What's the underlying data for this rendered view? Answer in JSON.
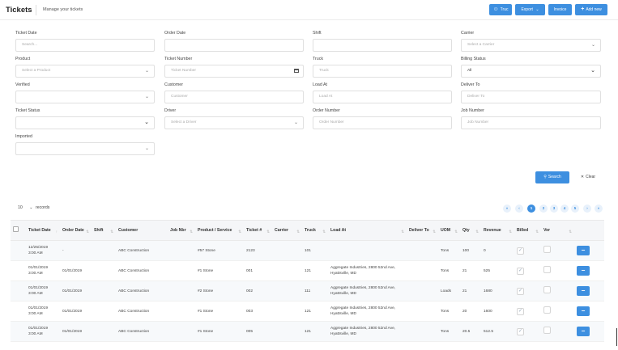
{
  "header": {
    "title": "Tickets",
    "subtitle": "Manage your tickets",
    "buttons": {
      "truc": "Truc",
      "export": "Export",
      "invoice": "Invoice",
      "add_new": "Add new"
    }
  },
  "filters": {
    "ticket_date": {
      "label": "Ticket Date",
      "placeholder": "Search..."
    },
    "order_date": {
      "label": "Order Date",
      "value": ""
    },
    "shift": {
      "label": "Shift",
      "value": ""
    },
    "carrier": {
      "label": "Carrier",
      "placeholder": "Select a Carrier"
    },
    "product": {
      "label": "Product",
      "placeholder": "Select a Product"
    },
    "ticket_number": {
      "label": "Ticket Number",
      "placeholder": "Ticket Number"
    },
    "truck": {
      "label": "Truck",
      "placeholder": "Truck"
    },
    "billing_status": {
      "label": "Billing Status",
      "value": "All"
    },
    "verified": {
      "label": "Verified",
      "value": ""
    },
    "customer": {
      "label": "Customer",
      "placeholder": "Customer"
    },
    "load_at": {
      "label": "Load At",
      "placeholder": "Load At"
    },
    "deliver_to": {
      "label": "Deliver To",
      "placeholder": "Deliver To"
    },
    "ticket_status": {
      "label": "Ticket Status",
      "value": ""
    },
    "driver": {
      "label": "Driver",
      "placeholder": "Select a Driver"
    },
    "order_number": {
      "label": "Order Number",
      "placeholder": "Order Number"
    },
    "job_number": {
      "label": "Job Number",
      "placeholder": "Job Number"
    },
    "imported": {
      "label": "Imported",
      "value": ""
    },
    "search_label": "Search",
    "clear_label": "Clear"
  },
  "list_controls": {
    "page_size": "10",
    "records_label": "records",
    "pages": [
      "1",
      "2",
      "3",
      "4",
      "5"
    ],
    "first": "«",
    "prev": "‹",
    "next": "›",
    "last": "»"
  },
  "table": {
    "columns": [
      "Ticket Date",
      "Order Date",
      "Shift",
      "Customer",
      "Job Nbr",
      "Product / Service",
      "Ticket #",
      "Carrier",
      "Truck",
      "Load At",
      "Deliver To",
      "UOM",
      "Qty",
      "Revenue",
      "Billed",
      "Ver"
    ],
    "rows": [
      {
        "ticket_date": "12/25/2019",
        "ticket_time": "3:00 AM",
        "order_date": "-",
        "shift": "",
        "customer": "ABC Construction",
        "job": "",
        "product": "#57 Stone",
        "ticket": "2123",
        "carrier": "",
        "truck": "101",
        "load_at": "",
        "deliver_to": "",
        "uom": "Tons",
        "qty": "100",
        "revenue": "0",
        "billed": true,
        "verified": false
      },
      {
        "ticket_date": "01/01/2019",
        "ticket_time": "3:00 AM",
        "order_date": "01/01/2019",
        "shift": "",
        "customer": "ABC Construction",
        "job": "",
        "product": "#1 Stone",
        "ticket": "001",
        "carrier": "",
        "truck": "121",
        "load_at": "Aggregate Industries, 2800 52nd Ave, Hyattsville, MD",
        "deliver_to": "",
        "uom": "Tons",
        "qty": "21",
        "revenue": "525",
        "billed": true,
        "verified": false
      },
      {
        "ticket_date": "01/01/2019",
        "ticket_time": "3:00 AM",
        "order_date": "01/01/2019",
        "shift": "",
        "customer": "ABC Construction",
        "job": "",
        "product": "#2 Stone",
        "ticket": "002",
        "carrier": "",
        "truck": "111",
        "load_at": "Aggregate Industries, 2800 52nd Ave, Hyattsville, MD",
        "deliver_to": "",
        "uom": "Loads",
        "qty": "21",
        "revenue": "1680",
        "billed": true,
        "verified": false
      },
      {
        "ticket_date": "01/01/2019",
        "ticket_time": "3:00 AM",
        "order_date": "01/01/2019",
        "shift": "",
        "customer": "ABC Construction",
        "job": "",
        "product": "#1 Stone",
        "ticket": "003",
        "carrier": "",
        "truck": "121",
        "load_at": "Aggregate Industries, 2800 52nd Ave, Hyattsville, MD",
        "deliver_to": "",
        "uom": "Tons",
        "qty": "20",
        "revenue": "1600",
        "billed": true,
        "verified": false
      },
      {
        "ticket_date": "01/01/2019",
        "ticket_time": "3:00 AM",
        "order_date": "01/01/2019",
        "shift": "",
        "customer": "ABC Construction",
        "job": "",
        "product": "#1 Stone",
        "ticket": "005",
        "carrier": "",
        "truck": "121",
        "load_at": "Aggregate Industries, 2800 52nd Ave, Hyattsville, MD",
        "deliver_to": "",
        "uom": "Tons",
        "qty": "20.5",
        "revenue": "512.5",
        "billed": true,
        "verified": false
      }
    ]
  },
  "colors": {
    "accent": "#3d8fe0",
    "header_bg": "#f5f6f8"
  },
  "icons": {
    "truc": "person-icon",
    "add_new": "plus-icon",
    "search": "search-icon",
    "clear": "close-icon",
    "row_action": "minus-icon"
  }
}
